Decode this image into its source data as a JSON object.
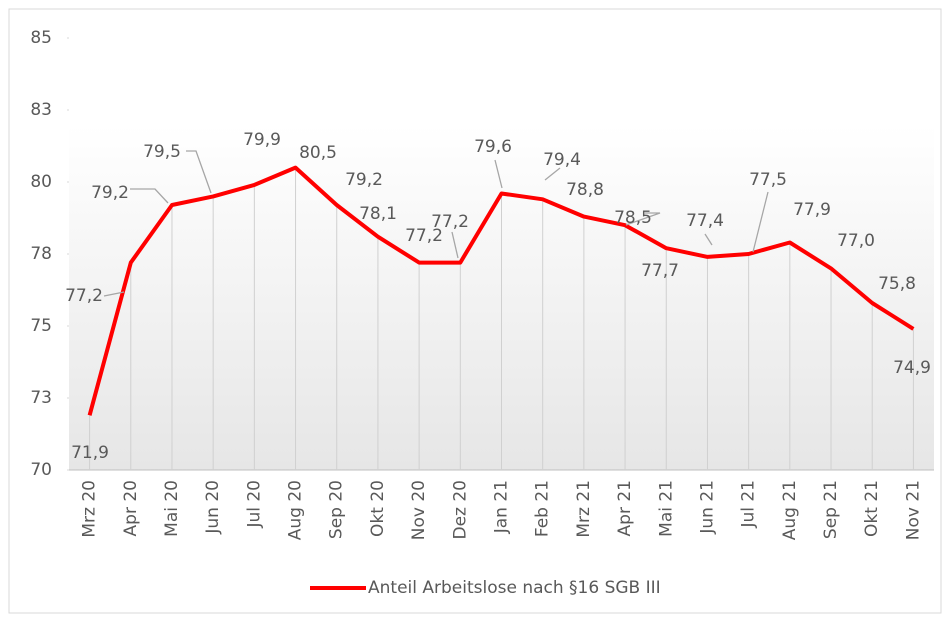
{
  "chart_data": {
    "type": "line",
    "categories": [
      "Mrz 20",
      "Apr 20",
      "Mai 20",
      "Jun 20",
      "Jul 20",
      "Aug 20",
      "Sep 20",
      "Okt 20",
      "Nov 20",
      "Dez 20",
      "Jan 21",
      "Feb 21",
      "Mrz 21",
      "Apr 21",
      "Mai 21",
      "Jun 21",
      "Jul 21",
      "Aug 21",
      "Sep 21",
      "Okt 21",
      "Nov 21"
    ],
    "series": [
      {
        "name": "Anteil Arbeitslose nach §16 SGB III",
        "color": "#ff0000",
        "values": [
          71.9,
          77.2,
          79.2,
          79.5,
          79.9,
          80.5,
          79.2,
          78.1,
          77.2,
          77.2,
          79.6,
          79.4,
          78.8,
          78.5,
          77.7,
          77.4,
          77.5,
          77.9,
          77.0,
          75.8,
          74.9
        ],
        "value_labels": [
          "71,9",
          "77,2",
          "79,2",
          "79,5",
          "79,9",
          "80,5",
          "79,2",
          "78,1",
          "77,2",
          "77,2",
          "79,6",
          "79,4",
          "78,8",
          "78,5",
          "77,7",
          "77,4",
          "77,5",
          "77,9",
          "77,0",
          "75,8",
          "74,9"
        ]
      }
    ],
    "ylim": [
      70,
      85
    ],
    "yticks": [
      70,
      {
        "value": 72.5,
        "label": "73"
      },
      75,
      {
        "value": 77.5,
        "label": "78"
      },
      80,
      {
        "value": 82.5,
        "label": "83"
      },
      85
    ],
    "legend": "bottom"
  }
}
